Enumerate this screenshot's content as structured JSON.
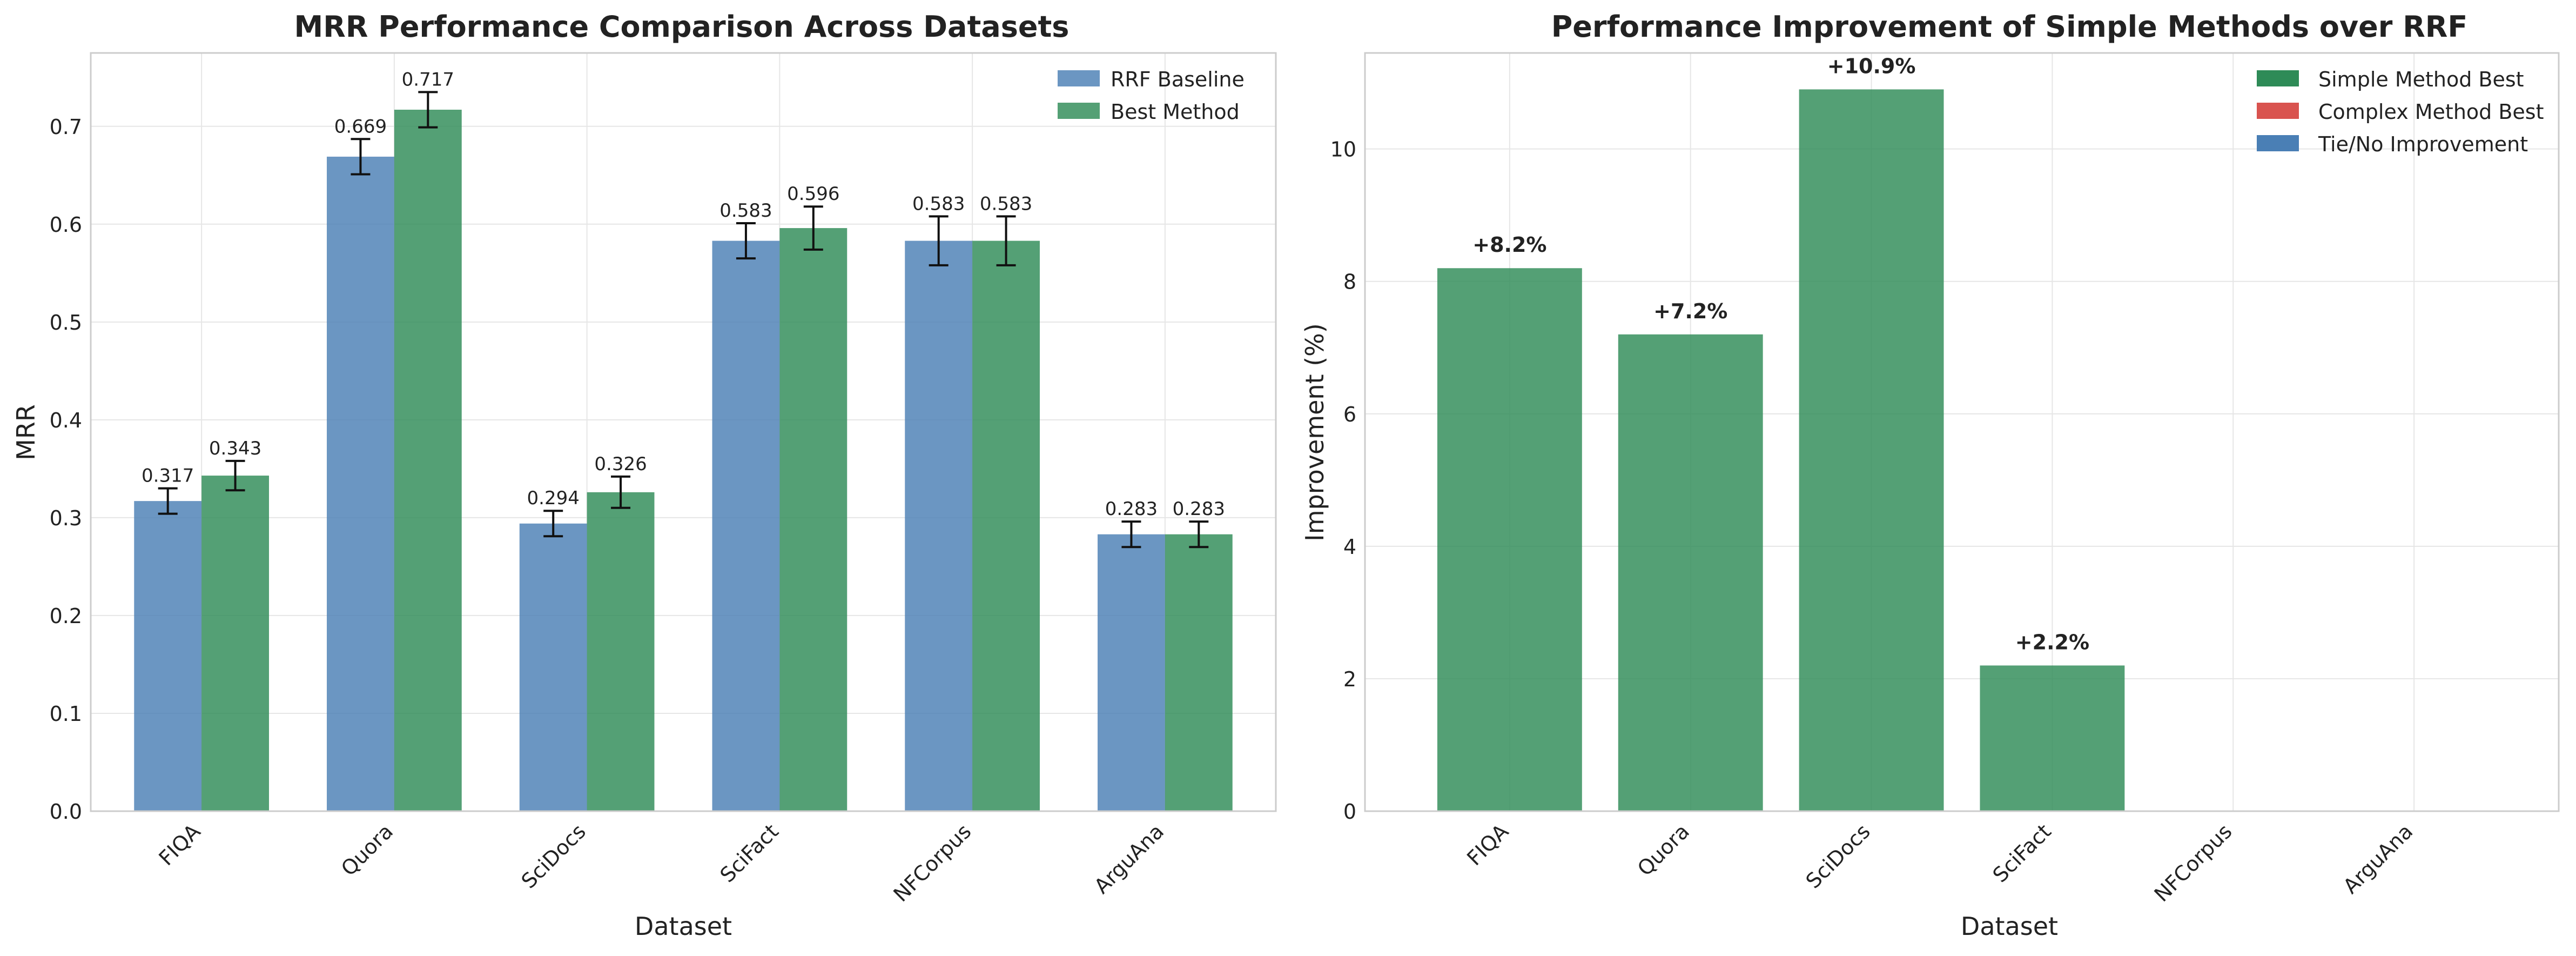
{
  "chart_data": [
    {
      "type": "bar",
      "title": "MRR Performance Comparison Across Datasets",
      "xlabel": "Dataset",
      "ylabel": "MRR",
      "categories": [
        "FIQA",
        "Quora",
        "SciDocs",
        "SciFact",
        "NFCorpus",
        "ArguAna"
      ],
      "ylim": [
        0,
        0.775
      ],
      "yticks": [
        0.0,
        0.1,
        0.2,
        0.3,
        0.4,
        0.5,
        0.6,
        0.7
      ],
      "ytick_labels": [
        "0.0",
        "0.1",
        "0.2",
        "0.3",
        "0.4",
        "0.5",
        "0.6",
        "0.7"
      ],
      "grid": true,
      "legend_position": "top-right",
      "series": [
        {
          "name": "RRF Baseline",
          "color": "#4a7fb5",
          "values": [
            0.317,
            0.669,
            0.294,
            0.583,
            0.583,
            0.283
          ],
          "errors": [
            0.013,
            0.018,
            0.013,
            0.018,
            0.025,
            0.013
          ],
          "labels": [
            "0.317",
            "0.669",
            "0.294",
            "0.583",
            "0.583",
            "0.283"
          ]
        },
        {
          "name": "Best Method",
          "color": "#2e8b57",
          "values": [
            0.343,
            0.717,
            0.326,
            0.596,
            0.583,
            0.283
          ],
          "errors": [
            0.015,
            0.018,
            0.016,
            0.022,
            0.025,
            0.013
          ],
          "labels": [
            "0.343",
            "0.717",
            "0.326",
            "0.596",
            "0.583",
            "0.283"
          ]
        }
      ]
    },
    {
      "type": "bar",
      "title": "Performance Improvement of Simple Methods over RRF",
      "xlabel": "Dataset",
      "ylabel": "Improvement (%)",
      "categories": [
        "FIQA",
        "Quora",
        "SciDocs",
        "SciFact",
        "NFCorpus",
        "ArguAna"
      ],
      "values": [
        8.2,
        7.2,
        10.9,
        2.2,
        0,
        0
      ],
      "value_labels": [
        "+8.2%",
        "+7.2%",
        "+10.9%",
        "+2.2%",
        "",
        ""
      ],
      "ylim": [
        0,
        11.45
      ],
      "yticks": [
        0,
        2,
        4,
        6,
        8,
        10
      ],
      "ytick_labels": [
        "0",
        "2",
        "4",
        "6",
        "8",
        "10"
      ],
      "grid": true,
      "legend_position": "top-right",
      "bar_color": "#2e8b57",
      "legend": [
        {
          "name": "Simple Method Best",
          "color": "#2e8b57"
        },
        {
          "name": "Complex Method Best",
          "color": "#d9534f"
        },
        {
          "name": "Tie/No Improvement",
          "color": "#4a7fb5"
        }
      ]
    }
  ]
}
